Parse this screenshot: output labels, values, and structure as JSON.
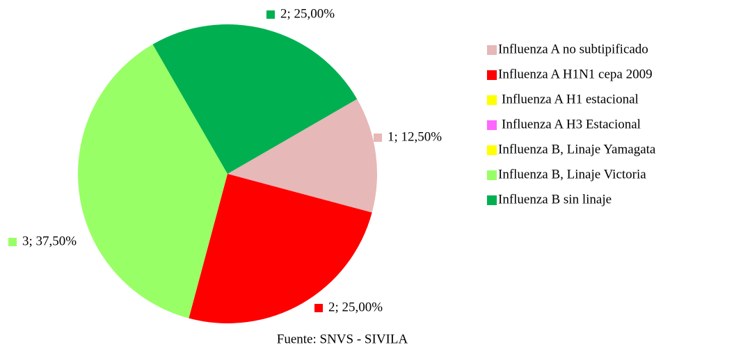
{
  "chart_data": {
    "type": "pie",
    "categories": [
      "Influenza A no subtipificado",
      "Influenza A H1N1 cepa 2009",
      "Influenza A H1 estacional",
      "Influenza A H3 Estacional",
      "Influenza B, Linaje Yamagata",
      "Influenza B, Linaje Victoria",
      "Influenza B sin linaje"
    ],
    "values": [
      1,
      2,
      0,
      0,
      0,
      3,
      2
    ],
    "value_labels": [
      "1; 12,50%",
      "2; 25,00%",
      null,
      null,
      null,
      "3; 37,50%",
      "2; 25,00%"
    ],
    "colors": [
      "#e6b8b7",
      "#ff0000",
      "#ffff00",
      "#ff66ff",
      "#ffff00",
      "#99ff66",
      "#00b050"
    ],
    "source": "Fuente: SNVS - SIVILA"
  }
}
